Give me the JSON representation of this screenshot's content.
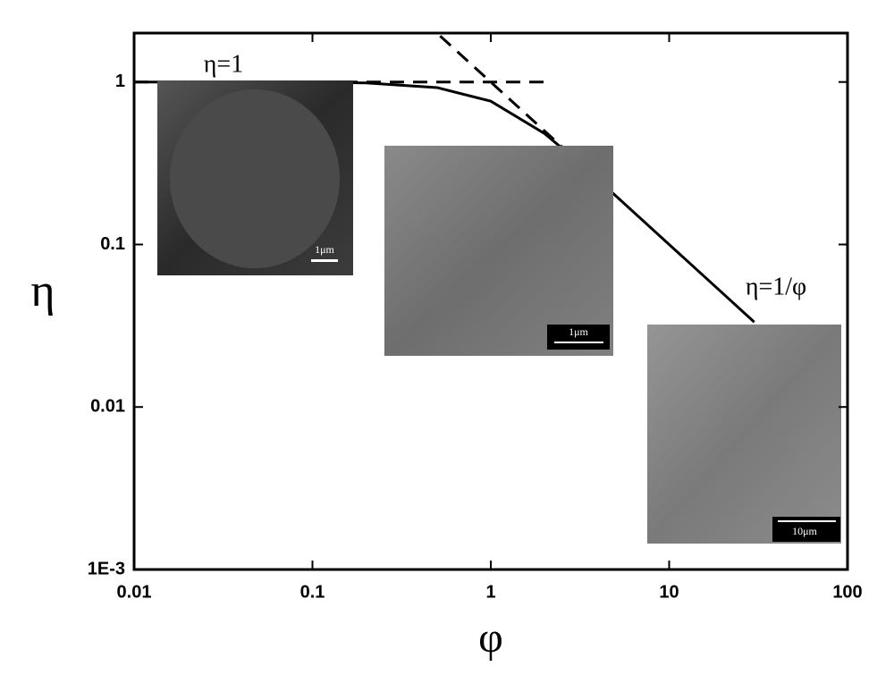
{
  "chart_data": {
    "type": "line",
    "x_label": "φ",
    "y_label": "η",
    "log_x": true,
    "log_y": true,
    "xlim": [
      0.01,
      100
    ],
    "ylim": [
      0.001,
      2
    ],
    "xticks": [
      0.01,
      0.1,
      1,
      10,
      100
    ],
    "yticks": [
      {
        "value": 0.001,
        "label": "1E-3"
      },
      0.01,
      0.1,
      1
    ],
    "series": [
      {
        "color": "#000000",
        "style": "solid",
        "x": [
          0.01,
          0.1,
          0.2,
          0.5,
          1,
          2,
          3,
          5,
          10,
          20,
          30
        ],
        "values": [
          1.0,
          0.997,
          0.987,
          0.924,
          0.762,
          0.482,
          0.332,
          0.2,
          0.1,
          0.05,
          0.0333
        ]
      },
      {
        "color": "#000000",
        "style": "dashed",
        "x": [
          0.01,
          2
        ],
        "values": [
          1,
          1
        ]
      },
      {
        "color": "#000000",
        "style": "dashed",
        "x": [
          0.52,
          2.5
        ],
        "values": [
          1.92,
          0.4
        ]
      }
    ],
    "annotations": [
      "η=1",
      "η=1/φ"
    ],
    "insets": [
      {
        "scale_bar": "1μm"
      },
      {
        "scale_bar": "1μm"
      },
      {
        "scale_bar": "10μm"
      }
    ]
  }
}
